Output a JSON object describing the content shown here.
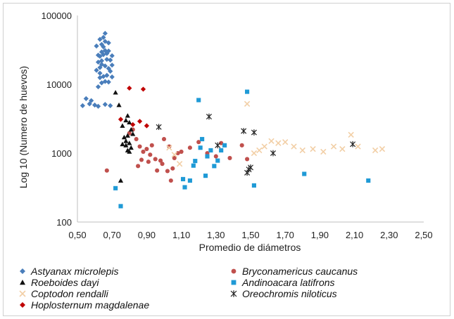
{
  "chart_data": {
    "type": "scatter",
    "title": "",
    "xlabel": "Promedio de diámetros",
    "ylabel": "Log 10 (Numero de huevos)",
    "xlim": [
      0.5,
      2.5
    ],
    "ylim": [
      100,
      100000
    ],
    "y_scale": "log",
    "x_ticks": [
      "0,50",
      "0,70",
      "0,90",
      "1,10",
      "1,30",
      "1,50",
      "1,70",
      "1,90",
      "2,10",
      "2,30",
      "2,50"
    ],
    "y_ticks": [
      "100",
      "1000",
      "10000",
      "100000"
    ],
    "grid": false,
    "legend_position": "bottom",
    "series": [
      {
        "name": "Astyanax microlepis",
        "color": "#4a7ebb",
        "marker": "diamond",
        "points": [
          [
            0.55,
            6200
          ],
          [
            0.58,
            5800
          ],
          [
            0.6,
            5000
          ],
          [
            0.53,
            4900
          ],
          [
            0.57,
            5200
          ],
          [
            0.62,
            4800
          ],
          [
            0.66,
            5100
          ],
          [
            0.69,
            4900
          ],
          [
            0.62,
            9200
          ],
          [
            0.64,
            10500
          ],
          [
            0.66,
            11000
          ],
          [
            0.68,
            10800
          ],
          [
            0.63,
            12500
          ],
          [
            0.65,
            13000
          ],
          [
            0.67,
            13500
          ],
          [
            0.7,
            12800
          ],
          [
            0.61,
            16000
          ],
          [
            0.63,
            17500
          ],
          [
            0.66,
            18500
          ],
          [
            0.68,
            17000
          ],
          [
            0.62,
            21000
          ],
          [
            0.64,
            22000
          ],
          [
            0.67,
            23000
          ],
          [
            0.69,
            22500
          ],
          [
            0.63,
            25500
          ],
          [
            0.65,
            27000
          ],
          [
            0.67,
            28000
          ],
          [
            0.64,
            29500
          ],
          [
            0.66,
            31000
          ],
          [
            0.68,
            30500
          ],
          [
            0.62,
            26500
          ],
          [
            0.7,
            26000
          ],
          [
            0.65,
            35000
          ],
          [
            0.64,
            38000
          ],
          [
            0.66,
            42000
          ],
          [
            0.63,
            45000
          ],
          [
            0.65,
            48000
          ],
          [
            0.66,
            55000
          ],
          [
            0.68,
            40000
          ],
          [
            0.61,
            36000
          ],
          [
            0.63,
            14500
          ],
          [
            0.69,
            15500
          ],
          [
            0.64,
            19500
          ],
          [
            0.7,
            19000
          ]
        ]
      },
      {
        "name": "Bryconamericus caucanus",
        "color": "#c0504d",
        "marker": "circle",
        "points": [
          [
            0.67,
            560
          ],
          [
            0.8,
            1950
          ],
          [
            0.82,
            2200
          ],
          [
            0.84,
            1600
          ],
          [
            0.86,
            1250
          ],
          [
            0.88,
            1050
          ],
          [
            0.9,
            1150
          ],
          [
            0.92,
            950
          ],
          [
            0.95,
            820
          ],
          [
            0.98,
            780
          ],
          [
            0.96,
            560
          ],
          [
            0.99,
            700
          ],
          [
            1.02,
            550
          ],
          [
            1.05,
            600
          ],
          [
            1.08,
            1000
          ],
          [
            1.0,
            1600
          ],
          [
            1.03,
            1250
          ],
          [
            1.06,
            850
          ],
          [
            0.93,
            1300
          ],
          [
            0.91,
            750
          ],
          [
            0.87,
            800
          ],
          [
            0.85,
            650
          ],
          [
            1.1,
            1050
          ],
          [
            1.15,
            1200
          ],
          [
            1.2,
            1450
          ],
          [
            1.25,
            1000
          ],
          [
            1.3,
            900
          ],
          [
            1.33,
            1400
          ],
          [
            1.38,
            850
          ],
          [
            1.45,
            1300
          ],
          [
            1.48,
            820
          ],
          [
            1.04,
            400
          ]
        ]
      },
      {
        "name": "Roeboides dayi",
        "color": "#111111",
        "marker": "triangle",
        "points": [
          [
            0.72,
            7600
          ],
          [
            0.76,
            2500
          ],
          [
            0.78,
            3000
          ],
          [
            0.79,
            3500
          ],
          [
            0.8,
            2800
          ],
          [
            0.81,
            2200
          ],
          [
            0.77,
            1700
          ],
          [
            0.78,
            1500
          ],
          [
            0.79,
            1800
          ],
          [
            0.8,
            1400
          ],
          [
            0.81,
            1200
          ],
          [
            0.79,
            1100
          ],
          [
            0.8,
            1050
          ],
          [
            0.78,
            1300
          ],
          [
            0.82,
            1900
          ],
          [
            0.76,
            1350
          ],
          [
            0.75,
            400
          ],
          [
            0.74,
            5000
          ]
        ]
      },
      {
        "name": "Andinoacara latifrons",
        "color": "#1f9ad6",
        "marker": "square",
        "points": [
          [
            0.72,
            310
          ],
          [
            0.75,
            170
          ],
          [
            1.11,
            420
          ],
          [
            1.12,
            320
          ],
          [
            1.15,
            400
          ],
          [
            1.17,
            660
          ],
          [
            1.18,
            770
          ],
          [
            1.2,
            5900
          ],
          [
            1.21,
            1200
          ],
          [
            1.22,
            1600
          ],
          [
            1.24,
            470
          ],
          [
            1.25,
            900
          ],
          [
            1.27,
            1100
          ],
          [
            1.29,
            650
          ],
          [
            1.31,
            780
          ],
          [
            1.33,
            1100
          ],
          [
            1.35,
            1300
          ],
          [
            1.48,
            7800
          ],
          [
            1.52,
            340
          ],
          [
            1.81,
            500
          ],
          [
            2.18,
            400
          ]
        ]
      },
      {
        "name": "Coptodon rendalli",
        "color": "#f2cfa6",
        "marker": "x",
        "points": [
          [
            1.03,
            1200
          ],
          [
            1.06,
            950
          ],
          [
            1.09,
            700
          ],
          [
            1.48,
            5200
          ],
          [
            1.52,
            1000
          ],
          [
            1.55,
            1100
          ],
          [
            1.58,
            1250
          ],
          [
            1.62,
            1500
          ],
          [
            1.66,
            1400
          ],
          [
            1.7,
            1450
          ],
          [
            1.75,
            1250
          ],
          [
            1.8,
            1100
          ],
          [
            1.86,
            1150
          ],
          [
            1.92,
            1050
          ],
          [
            1.98,
            1250
          ],
          [
            2.03,
            1150
          ],
          [
            2.08,
            1850
          ],
          [
            2.12,
            1250
          ],
          [
            2.22,
            1100
          ],
          [
            2.26,
            1150
          ]
        ]
      },
      {
        "name": "Hoplosternum magdalenae",
        "color": "#c00000",
        "marker": "diamond",
        "points": [
          [
            0.8,
            8800
          ],
          [
            0.88,
            8500
          ],
          [
            0.75,
            3100
          ],
          [
            0.82,
            2600
          ],
          [
            0.86,
            2900
          ],
          [
            0.9,
            2500
          ]
        ]
      },
      {
        "name": "Oreochromis niloticus",
        "color": "#222222",
        "marker": "star",
        "points": [
          [
            0.97,
            2400
          ],
          [
            1.26,
            3400
          ],
          [
            1.31,
            1300
          ],
          [
            1.46,
            2100
          ],
          [
            1.52,
            2000
          ],
          [
            1.63,
            1000
          ],
          [
            1.48,
            520
          ],
          [
            1.49,
            580
          ],
          [
            1.5,
            620
          ],
          [
            2.09,
            1350
          ]
        ]
      }
    ]
  }
}
